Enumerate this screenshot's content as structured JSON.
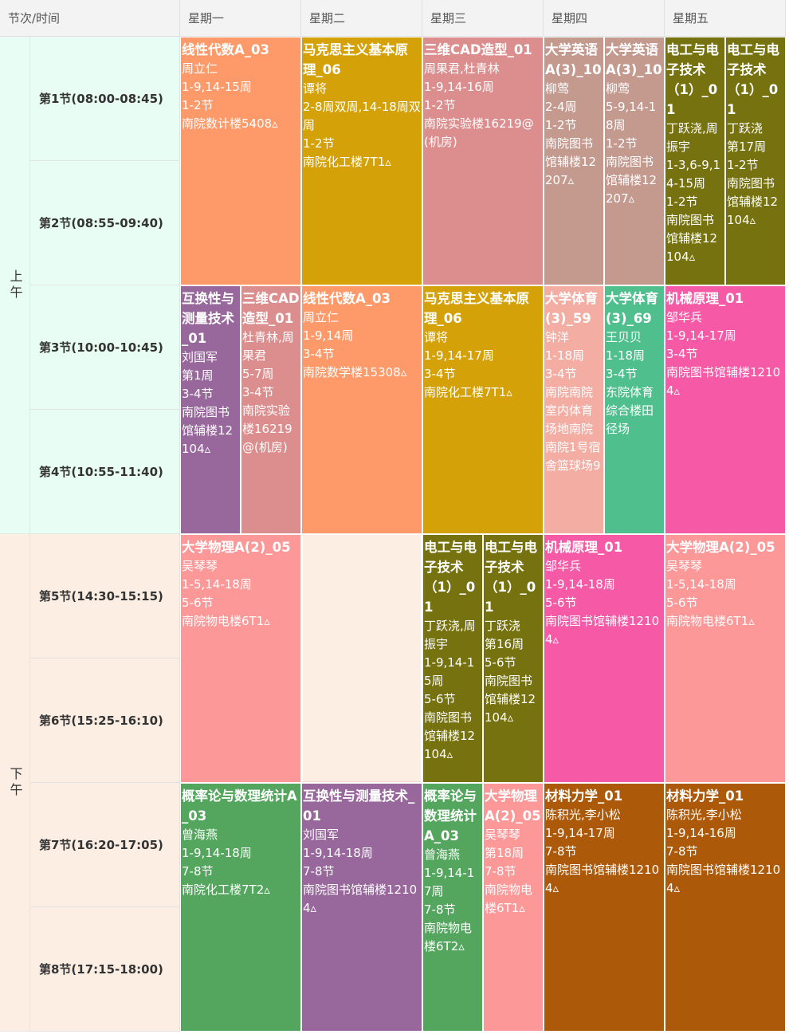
{
  "header": {
    "corner": "节次/时间",
    "days": [
      "星期一",
      "星期二",
      "星期三",
      "星期四",
      "星期五"
    ]
  },
  "segments": [
    {
      "label": "上午"
    },
    {
      "label": "下午"
    }
  ],
  "periods": [
    "第1节(08:00-08:45)",
    "第2节(08:55-09:40)",
    "第3节(10:00-10:45)",
    "第4节(10:55-11:40)",
    "第5节(14:30-15:15)",
    "第6节(15:25-16:10)",
    "第7节(16:20-17:05)",
    "第8节(17:15-18:00)"
  ],
  "colors": {
    "orange": "#fe9a6a",
    "gold": "#d4a208",
    "rose": "#dc8e8e",
    "taupe": "#c49a8f",
    "olive": "#76720f",
    "purple": "#98689c",
    "salmonpink": "#f3ada3",
    "green": "#4fc08d",
    "magenta": "#f65aa6",
    "pink": "#fc9898",
    "darkgreen": "#54a65e",
    "brown": "#ac5a0a"
  },
  "courses": [
    {
      "day": 0,
      "sub": 0,
      "subs": 1,
      "start": 1,
      "span": 2,
      "color": "orange",
      "name": "线性代数A_03",
      "lines": [
        "周立仁",
        "1-9,14-15周",
        "1-2节",
        "南院数计楼5408▵"
      ]
    },
    {
      "day": 1,
      "sub": 0,
      "subs": 1,
      "start": 1,
      "span": 2,
      "color": "gold",
      "name": "马克思主义基本原理_06",
      "lines": [
        "谭将",
        "2-8周双周,14-18周双周",
        "1-2节",
        "南院化工楼7T1▵"
      ]
    },
    {
      "day": 2,
      "sub": 0,
      "subs": 1,
      "start": 1,
      "span": 2,
      "color": "rose",
      "name": "三维CAD造型_01",
      "lines": [
        "周果君,杜青林",
        "1-9,14-16周",
        "1-2节",
        "南院实验楼16219@(机房)"
      ]
    },
    {
      "day": 3,
      "sub": 0,
      "subs": 2,
      "start": 1,
      "span": 2,
      "color": "taupe",
      "name": "大学英语A(3)_10",
      "lines": [
        "柳莺",
        "2-4周",
        "1-2节",
        "南院图书馆辅楼12207▵"
      ]
    },
    {
      "day": 3,
      "sub": 1,
      "subs": 2,
      "start": 1,
      "span": 2,
      "color": "taupe",
      "name": "大学英语A(3)_10",
      "lines": [
        "柳莺",
        "5-9,14-18周",
        "1-2节",
        "南院图书馆辅楼12207▵"
      ]
    },
    {
      "day": 4,
      "sub": 0,
      "subs": 2,
      "start": 1,
      "span": 2,
      "color": "olive",
      "name": "电工与电子技术（1）_01",
      "lines": [
        "丁跃浇,周振宇",
        "1-3,6-9,14-15周",
        "1-2节",
        "南院图书馆辅楼12104▵"
      ]
    },
    {
      "day": 4,
      "sub": 1,
      "subs": 2,
      "start": 1,
      "span": 2,
      "color": "olive",
      "name": "电工与电子技术（1）_01",
      "lines": [
        "丁跃浇",
        "第17周",
        "1-2节",
        "南院图书馆辅楼12104▵"
      ]
    },
    {
      "day": 0,
      "sub": 0,
      "subs": 2,
      "start": 3,
      "span": 2,
      "color": "purple",
      "name": "互换性与测量技术_01",
      "lines": [
        "刘国军",
        "第1周",
        "3-4节",
        "南院图书馆辅楼12104▵"
      ]
    },
    {
      "day": 0,
      "sub": 1,
      "subs": 2,
      "start": 3,
      "span": 2,
      "color": "rose",
      "name": "三维CAD造型_01",
      "lines": [
        "杜青林,周果君",
        "5-7周",
        "3-4节",
        "南院实验楼16219@(机房)"
      ]
    },
    {
      "day": 1,
      "sub": 0,
      "subs": 1,
      "start": 3,
      "span": 2,
      "color": "orange",
      "name": "线性代数A_03",
      "lines": [
        "周立仁",
        "1-9,14周",
        "3-4节",
        "南院数学楼15308▵"
      ]
    },
    {
      "day": 2,
      "sub": 0,
      "subs": 1,
      "start": 3,
      "span": 2,
      "color": "gold",
      "name": "马克思主义基本原理_06",
      "lines": [
        "谭将",
        "1-9,14-17周",
        "3-4节",
        "南院化工楼7T1▵"
      ]
    },
    {
      "day": 3,
      "sub": 0,
      "subs": 2,
      "start": 3,
      "span": 2,
      "color": "salmonpink",
      "name": "大学体育(3)_59",
      "lines": [
        "钟洋",
        "1-18周",
        "3-4节",
        "南院南院室内体育场地南院南院1号宿舍篮球场9"
      ]
    },
    {
      "day": 3,
      "sub": 1,
      "subs": 2,
      "start": 3,
      "span": 2,
      "color": "green",
      "name": "大学体育(3)_69",
      "lines": [
        "王贝贝",
        "1-18周",
        "3-4节",
        "东院体育综合楼田径场"
      ]
    },
    {
      "day": 4,
      "sub": 0,
      "subs": 1,
      "start": 3,
      "span": 2,
      "color": "magenta",
      "name": "机械原理_01",
      "lines": [
        "邹华兵",
        "1-9,14-17周",
        "3-4节",
        "南院图书馆辅楼12104▵"
      ]
    },
    {
      "day": 0,
      "sub": 0,
      "subs": 1,
      "start": 5,
      "span": 2,
      "color": "pink",
      "name": "大学物理A(2)_05",
      "lines": [
        "吴琴琴",
        "1-5,14-18周",
        "5-6节",
        "南院物电楼6T1▵"
      ]
    },
    {
      "day": 2,
      "sub": 0,
      "subs": 2,
      "start": 5,
      "span": 2,
      "color": "olive",
      "name": "电工与电子技术（1）_01",
      "lines": [
        "丁跃浇,周振宇",
        "1-9,14-15周",
        "5-6节",
        "南院图书馆辅楼12104▵"
      ]
    },
    {
      "day": 2,
      "sub": 1,
      "subs": 2,
      "start": 5,
      "span": 2,
      "color": "olive",
      "name": "电工与电子技术（1）_01",
      "lines": [
        "丁跃浇",
        "第16周",
        "5-6节",
        "南院图书馆辅楼12104▵"
      ]
    },
    {
      "day": 3,
      "sub": 0,
      "subs": 1,
      "start": 5,
      "span": 2,
      "color": "magenta",
      "name": "机械原理_01",
      "lines": [
        "邹华兵",
        "1-9,14-18周",
        "5-6节",
        "南院图书馆辅楼12104▵"
      ]
    },
    {
      "day": 4,
      "sub": 0,
      "subs": 1,
      "start": 5,
      "span": 2,
      "color": "pink",
      "name": "大学物理A(2)_05",
      "lines": [
        "吴琴琴",
        "1-5,14-18周",
        "5-6节",
        "南院物电楼6T1▵"
      ]
    },
    {
      "day": 0,
      "sub": 0,
      "subs": 1,
      "start": 7,
      "span": 2,
      "color": "darkgreen",
      "name": "概率论与数理统计A_03",
      "lines": [
        "曾海燕",
        "1-9,14-18周",
        "7-8节",
        "南院化工楼7T2▵"
      ]
    },
    {
      "day": 1,
      "sub": 0,
      "subs": 1,
      "start": 7,
      "span": 2,
      "color": "purple",
      "name": "互换性与测量技术_01",
      "lines": [
        "刘国军",
        "1-9,14-18周",
        "7-8节",
        "南院图书馆辅楼12104▵"
      ]
    },
    {
      "day": 2,
      "sub": 0,
      "subs": 2,
      "start": 7,
      "span": 2,
      "color": "darkgreen",
      "name": "概率论与数理统计A_03",
      "lines": [
        "曾海燕",
        "1-9,14-17周",
        "7-8节",
        "南院物电楼6T2▵"
      ]
    },
    {
      "day": 2,
      "sub": 1,
      "subs": 2,
      "start": 7,
      "span": 2,
      "color": "pink",
      "name": "大学物理A(2)_05",
      "lines": [
        "吴琴琴",
        "第18周",
        "7-8节",
        "南院物电楼6T1▵"
      ]
    },
    {
      "day": 3,
      "sub": 0,
      "subs": 1,
      "start": 7,
      "span": 2,
      "color": "brown",
      "name": "材料力学_01",
      "lines": [
        "陈积光,李小松",
        "1-9,14-17周",
        "7-8节",
        "南院图书馆辅楼12104▵"
      ]
    },
    {
      "day": 4,
      "sub": 0,
      "subs": 1,
      "start": 7,
      "span": 2,
      "color": "brown",
      "name": "材料力学_01",
      "lines": [
        "陈积光,李小松",
        "1-9,14-16周",
        "7-8节",
        "南院图书馆辅楼12104▵"
      ]
    }
  ]
}
